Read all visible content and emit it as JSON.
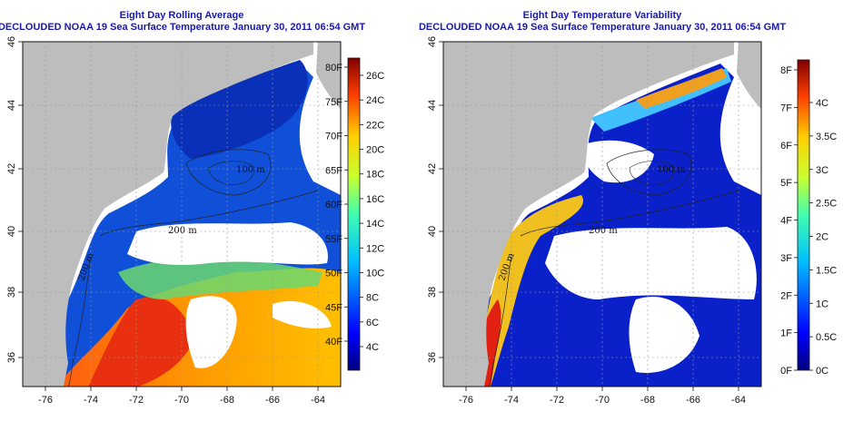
{
  "colors": {
    "land": "#bdbdbd",
    "nodata": "#ffffff",
    "title": "#1a1aa8",
    "grid": "#9a9a9a"
  },
  "shared": {
    "lon_ticks": [
      "-76",
      "-74",
      "-72",
      "-70",
      "-68",
      "-66",
      "-64"
    ],
    "lat_ticks": [
      "36",
      "38",
      "40",
      "42",
      "44",
      "46"
    ]
  },
  "panels": [
    {
      "id": "avg",
      "title": "Eight Day Rolling Average",
      "subtitle": "DECLOUDED NOAA 19 Sea Surface Temperature January 30, 2011 06:54 GMT",
      "contour_labels": [
        "100 m",
        "200 m",
        "200 m"
      ],
      "colorbar": {
        "left_labels": [
          "80F",
          "75F",
          "70F",
          "65F",
          "60F",
          "55F",
          "50F",
          "45F",
          "40F"
        ],
        "right_labels": [
          "26C",
          "24C",
          "22C",
          "20C",
          "18C",
          "16C",
          "14C",
          "12C",
          "10C",
          "8C",
          "6C",
          "4C"
        ]
      }
    },
    {
      "id": "var",
      "title": "Eight Day Temperature Variability",
      "subtitle": "DECLOUDED NOAA 19 Sea Surface Temperature January 30, 2011 06:54 GMT",
      "contour_labels": [
        "100 m",
        "200 m",
        "200 m"
      ],
      "colorbar": {
        "left_labels": [
          "8F",
          "7F",
          "6F",
          "5F",
          "4F",
          "3F",
          "2F",
          "1F",
          "0F"
        ],
        "right_labels": [
          "4C",
          "3.5C",
          "3C",
          "2.5C",
          "2C",
          "1.5C",
          "1C",
          "0.5C",
          "0C"
        ]
      }
    }
  ]
}
